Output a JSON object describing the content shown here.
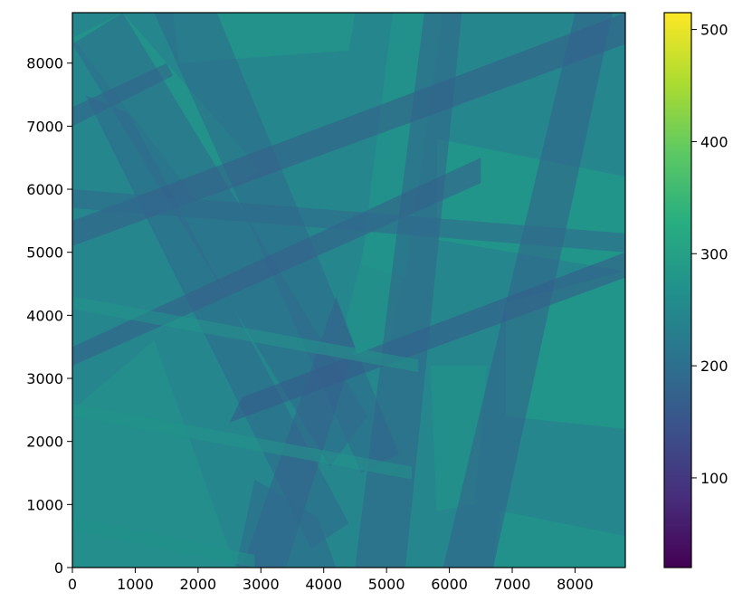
{
  "chart_data": {
    "type": "heatmap",
    "title": "",
    "xlabel": "",
    "ylabel": "",
    "xlim": [
      0,
      8800
    ],
    "ylim": [
      0,
      8800
    ],
    "x_ticks": [
      0,
      1000,
      2000,
      3000,
      4000,
      5000,
      6000,
      7000,
      8000
    ],
    "y_ticks": [
      0,
      1000,
      2000,
      3000,
      4000,
      5000,
      6000,
      7000,
      8000
    ],
    "x_tick_labels": [
      "0",
      "1000",
      "2000",
      "3000",
      "4000",
      "5000",
      "6000",
      "7000",
      "8000"
    ],
    "y_tick_labels": [
      "0",
      "1000",
      "2000",
      "3000",
      "4000",
      "5000",
      "6000",
      "7000",
      "8000"
    ],
    "colormap": "viridis",
    "background_value": 250,
    "colorbar": {
      "range": [
        20,
        515
      ],
      "ticks": [
        100,
        200,
        300,
        400,
        500
      ],
      "tick_labels": [
        "100",
        "200",
        "300",
        "400",
        "500"
      ]
    },
    "overlapping_bands": [
      {
        "name": "bright-rect-upper-left",
        "value": 290,
        "polygon": [
          [
            0,
            8400
          ],
          [
            800,
            8800
          ],
          [
            3000,
            6300
          ],
          [
            2000,
            5800
          ]
        ]
      },
      {
        "name": "bright-rect-top",
        "value": 290,
        "polygon": [
          [
            1600,
            8800
          ],
          [
            4500,
            8800
          ],
          [
            4400,
            8200
          ],
          [
            1700,
            8000
          ]
        ]
      },
      {
        "name": "bright-rect-right",
        "value": 300,
        "polygon": [
          [
            5800,
            6800
          ],
          [
            8800,
            6200
          ],
          [
            8800,
            4700
          ],
          [
            5800,
            5200
          ]
        ]
      },
      {
        "name": "bright-rect-lower-right",
        "value": 300,
        "polygon": [
          [
            6900,
            4200
          ],
          [
            8800,
            4700
          ],
          [
            8800,
            2200
          ],
          [
            6900,
            2400
          ]
        ]
      },
      {
        "name": "bright-rect-bottom-right",
        "value": 285,
        "polygon": [
          [
            6800,
            900
          ],
          [
            8800,
            500
          ],
          [
            8800,
            0
          ],
          [
            6700,
            0
          ]
        ]
      },
      {
        "name": "bright-stripe-upper",
        "value": 285,
        "polygon": [
          [
            5100,
            8800
          ],
          [
            5900,
            8800
          ],
          [
            5300,
            4600
          ],
          [
            4600,
            4800
          ]
        ]
      },
      {
        "name": "bright-stripe-mid",
        "value": 280,
        "polygon": [
          [
            4700,
            5300
          ],
          [
            5400,
            5300
          ],
          [
            5000,
            3300
          ],
          [
            4200,
            3300
          ]
        ]
      },
      {
        "name": "bright-stripe-lower",
        "value": 280,
        "polygon": [
          [
            5700,
            3200
          ],
          [
            6600,
            3200
          ],
          [
            6400,
            1000
          ],
          [
            5800,
            900
          ]
        ]
      },
      {
        "name": "bright-rect-lower-left",
        "value": 275,
        "polygon": [
          [
            0,
            2500
          ],
          [
            1300,
            3600
          ],
          [
            2600,
            0
          ],
          [
            0,
            0
          ]
        ]
      },
      {
        "name": "dark-diag-nw-se-1",
        "value": 190,
        "polygon": [
          [
            0,
            8300
          ],
          [
            800,
            8800
          ],
          [
            4700,
            2400
          ],
          [
            4100,
            1600
          ]
        ]
      },
      {
        "name": "dark-diag-nw-se-2",
        "value": 190,
        "polygon": [
          [
            1300,
            8800
          ],
          [
            2300,
            8800
          ],
          [
            5200,
            1800
          ],
          [
            4600,
            1500
          ]
        ]
      },
      {
        "name": "dark-diag-nw-se-3",
        "value": 190,
        "polygon": [
          [
            200,
            7500
          ],
          [
            900,
            7200
          ],
          [
            4400,
            700
          ],
          [
            3800,
            300
          ]
        ]
      },
      {
        "name": "dark-diag-sw-ne-1",
        "value": 170,
        "polygon": [
          [
            0,
            7000
          ],
          [
            0,
            7300
          ],
          [
            1500,
            8000
          ],
          [
            1600,
            7800
          ]
        ]
      },
      {
        "name": "dark-diag-sw-ne-2",
        "value": 165,
        "polygon": [
          [
            0,
            5100
          ],
          [
            0,
            5500
          ],
          [
            8800,
            8800
          ],
          [
            8800,
            8300
          ]
        ]
      },
      {
        "name": "dark-diag-sw-ne-3",
        "value": 160,
        "polygon": [
          [
            2500,
            2300
          ],
          [
            2700,
            2700
          ],
          [
            8800,
            5000
          ],
          [
            8800,
            4600
          ]
        ]
      },
      {
        "name": "dark-diag-sw-ne-4",
        "value": 165,
        "polygon": [
          [
            0,
            3200
          ],
          [
            0,
            3500
          ],
          [
            6500,
            6500
          ],
          [
            6500,
            6100
          ]
        ]
      },
      {
        "name": "dark-diag-steep-1",
        "value": 170,
        "polygon": [
          [
            2700,
            0
          ],
          [
            3400,
            0
          ],
          [
            4500,
            3500
          ],
          [
            4200,
            4300
          ]
        ]
      },
      {
        "name": "dark-diag-steep-2",
        "value": 175,
        "polygon": [
          [
            4500,
            0
          ],
          [
            5300,
            0
          ],
          [
            6200,
            8800
          ],
          [
            5600,
            8800
          ]
        ]
      },
      {
        "name": "dark-diag-steep-3",
        "value": 170,
        "polygon": [
          [
            5900,
            0
          ],
          [
            6700,
            0
          ],
          [
            8600,
            8800
          ],
          [
            8000,
            8800
          ]
        ]
      },
      {
        "name": "dark-wedge-bottom",
        "value": 190,
        "polygon": [
          [
            2600,
            0
          ],
          [
            4200,
            0
          ],
          [
            3900,
            800
          ],
          [
            2900,
            1400
          ]
        ]
      },
      {
        "name": "dark-diag-wnw-ese",
        "value": 185,
        "polygon": [
          [
            0,
            5700
          ],
          [
            0,
            6000
          ],
          [
            8800,
            5300
          ],
          [
            8800,
            5000
          ]
        ]
      },
      {
        "name": "bright-bar-h-1",
        "value": 275,
        "polygon": [
          [
            0,
            4100
          ],
          [
            0,
            4300
          ],
          [
            5500,
            3300
          ],
          [
            5500,
            3100
          ]
        ]
      },
      {
        "name": "bright-bar-h-2",
        "value": 275,
        "polygon": [
          [
            0,
            2400
          ],
          [
            0,
            2600
          ],
          [
            5400,
            1600
          ],
          [
            5400,
            1400
          ]
        ]
      },
      {
        "name": "bright-bar-h-3",
        "value": 270,
        "polygon": [
          [
            0,
            600
          ],
          [
            0,
            800
          ],
          [
            2900,
            200
          ],
          [
            2900,
            0
          ]
        ]
      }
    ]
  }
}
